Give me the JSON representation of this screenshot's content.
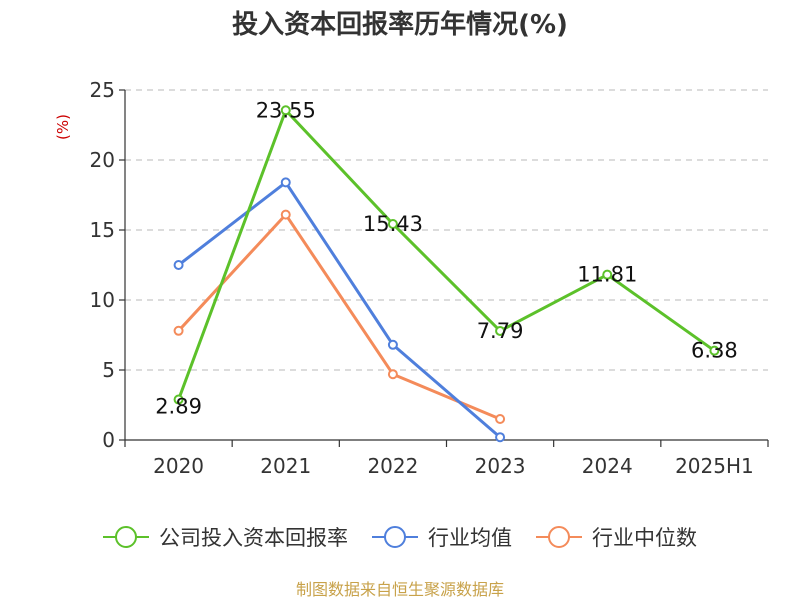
{
  "chart_data": {
    "type": "line",
    "title": "投入资本回报率历年情况(%)",
    "ylabel": "(%)",
    "categories": [
      "2020",
      "2021",
      "2022",
      "2023",
      "2024",
      "2025H1"
    ],
    "ylim": [
      0,
      25
    ],
    "yticks": [
      0,
      5,
      10,
      15,
      20,
      25
    ],
    "grid": true,
    "legend_position": "bottom",
    "series": [
      {
        "name": "公司投入资本回报率",
        "color": "#5cc12a",
        "values": [
          2.89,
          23.55,
          15.43,
          7.79,
          11.81,
          6.38
        ],
        "labels": [
          "2.89",
          "23.55",
          "15.43",
          "7.79",
          "11.81",
          "6.38"
        ]
      },
      {
        "name": "行业均值",
        "color": "#4f7fdc",
        "values": [
          12.5,
          18.4,
          6.8,
          0.2,
          null,
          null
        ]
      },
      {
        "name": "行业中位数",
        "color": "#f48b5a",
        "values": [
          7.8,
          16.1,
          4.7,
          1.5,
          null,
          null
        ]
      }
    ]
  },
  "source_text": "制图数据来自恒生聚源数据库"
}
